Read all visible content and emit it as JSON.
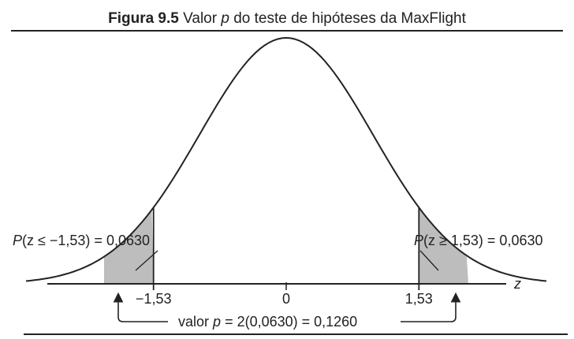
{
  "caption": {
    "figure_number": "Figura 9.5",
    "text_before_p": "Valor",
    "p_symbol": "p",
    "text_after_p": "do teste de hipóteses da MaxFlight"
  },
  "diagram": {
    "axis_variable": "z",
    "ticks": [
      {
        "z": -1.53,
        "label": "−1,53"
      },
      {
        "z": 0,
        "label": "0"
      },
      {
        "z": 1.53,
        "label": "1,53"
      }
    ],
    "left_tail": {
      "p_symbol": "P",
      "expr": "(z ≤ −1,53) = 0,0630"
    },
    "right_tail": {
      "p_symbol": "P",
      "expr": "(z ≥ 1,53) = 0,0630"
    },
    "p_value": {
      "prefix": "valor",
      "p_symbol": "p",
      "expr": "= 2(0,0630) = 0,1260"
    },
    "colors": {
      "curve": "#222222",
      "shade": "#bdbdbd"
    }
  }
}
